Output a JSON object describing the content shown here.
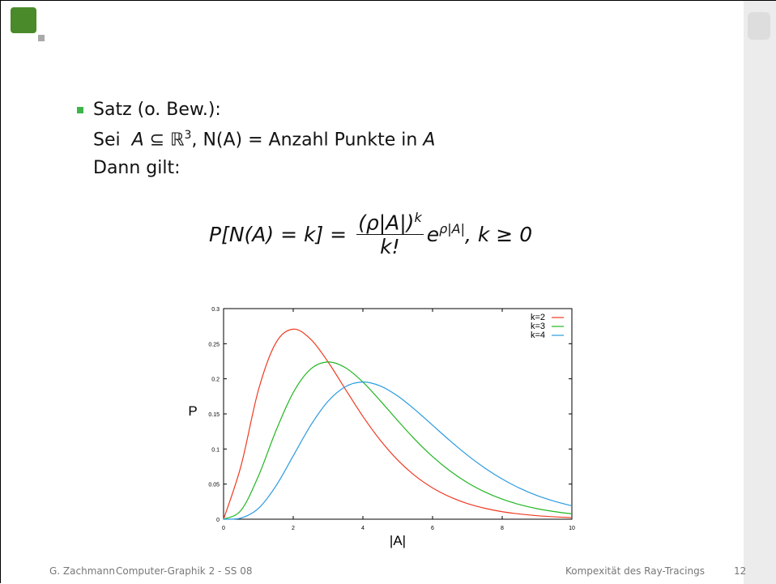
{
  "slide": {
    "bullet_title": "Satz (o. Bew.):",
    "line2": {
      "lead": "Sei",
      "set": "A ⊆ ℝ",
      "set_exp": "3",
      "rest": ", N(A) = Anzahl Punkte in ",
      "var": "A"
    },
    "line3": "Dann gilt:",
    "formula": {
      "lhs": "P[N(A) = k] =",
      "numerator": "(ρ|A|)",
      "numerator_exp": "k",
      "denominator": "k!",
      "base": "e",
      "base_exp": "ρ|A|",
      "tail": ", k ≥ 0"
    },
    "footer": {
      "author": "G. Zachmann",
      "course": "Computer-Graphik 2 - SS 08",
      "topic": "Kompexität des Ray-Tracings",
      "page": "12"
    }
  },
  "chart_data": {
    "type": "line",
    "xlabel": "|A|",
    "ylabel": "P",
    "x": [
      0,
      0.5,
      1,
      1.5,
      2,
      2.5,
      3,
      3.5,
      4,
      4.5,
      5,
      5.5,
      6,
      6.5,
      7,
      7.5,
      8,
      8.5,
      9,
      9.5,
      10
    ],
    "series": [
      {
        "name": "k=2",
        "color": "#ee3b22",
        "values": [
          0,
          0.0758,
          0.1839,
          0.251,
          0.2707,
          0.2565,
          0.224,
          0.185,
          0.1465,
          0.1125,
          0.0842,
          0.0618,
          0.0446,
          0.0318,
          0.0223,
          0.0156,
          0.0107,
          0.0074,
          0.005,
          0.0034,
          0.0023
        ]
      },
      {
        "name": "k=3",
        "color": "#22b622",
        "values": [
          0,
          0.0126,
          0.0613,
          0.1255,
          0.1804,
          0.2138,
          0.224,
          0.2158,
          0.1954,
          0.1687,
          0.1404,
          0.1133,
          0.0892,
          0.0688,
          0.0521,
          0.0389,
          0.0286,
          0.0208,
          0.015,
          0.0108,
          0.0076
        ]
      },
      {
        "name": "k=4",
        "color": "#2a9be0",
        "values": [
          0,
          0.0016,
          0.0153,
          0.0471,
          0.0902,
          0.1336,
          0.168,
          0.1888,
          0.1954,
          0.1898,
          0.1755,
          0.1558,
          0.1339,
          0.1118,
          0.0912,
          0.0729,
          0.0573,
          0.0442,
          0.0337,
          0.0256,
          0.019
        ]
      }
    ],
    "xlim": [
      0,
      10
    ],
    "xticks": [
      0,
      2,
      4,
      6,
      8,
      10
    ],
    "ylim": [
      0,
      0.3
    ],
    "yticks": [
      0,
      0.05,
      0.1,
      0.15,
      0.2,
      0.25,
      0.3
    ],
    "legend": "upper right"
  }
}
